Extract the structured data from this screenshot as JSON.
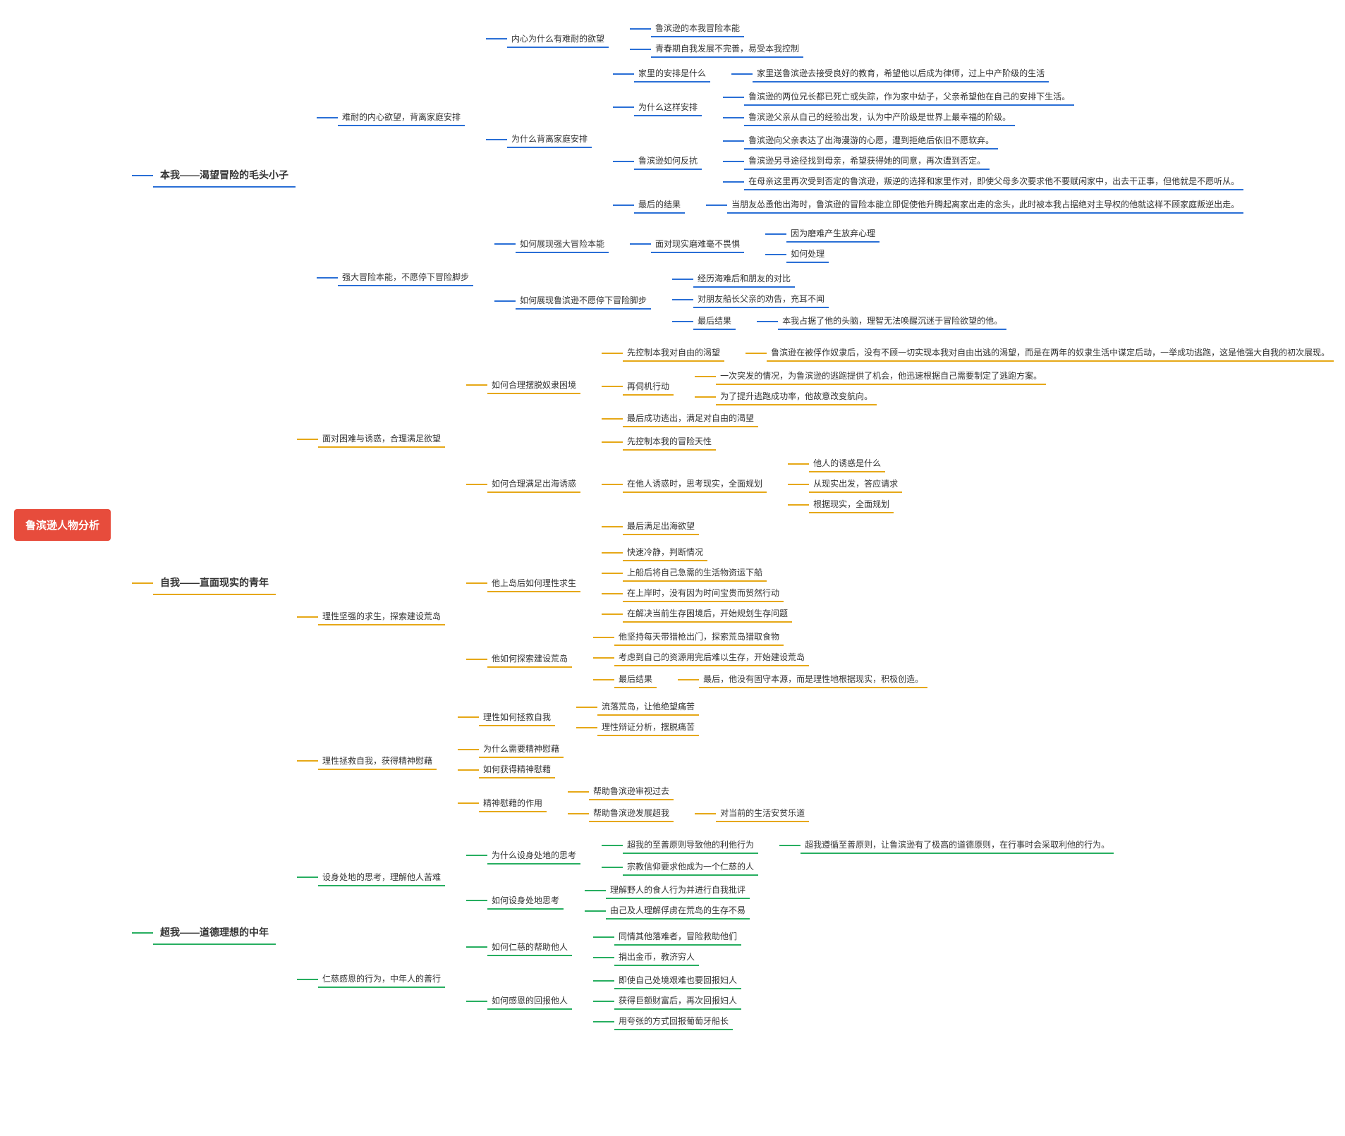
{
  "root": "鲁滨逊人物分析",
  "colors": {
    "root_bg": "#e74c3c",
    "root_fg": "#ffffff",
    "blue": "#2a6fd6",
    "orange": "#e6a817",
    "green": "#27ae60",
    "background": "#ffffff"
  },
  "font": {
    "family": "Microsoft YaHei",
    "root_size": 15,
    "l1_size": 14,
    "leaf_size": 12
  },
  "branches": [
    {
      "color": "blue",
      "title": "本我——渴望冒险的毛头小子",
      "children": [
        {
          "title": "难耐的内心欲望，背离家庭安排",
          "children": [
            {
              "title": "内心为什么有难耐的欲望",
              "children": [
                {
                  "title": "鲁滨逊的本我冒险本能"
                },
                {
                  "title": "青春期自我发展不完善，易受本我控制"
                }
              ]
            },
            {
              "title": "为什么背离家庭安排",
              "children": [
                {
                  "title": "家里的安排是什么",
                  "children": [
                    {
                      "title": "家里送鲁滨逊去接受良好的教育，希望他以后成为律师，过上中产阶级的生活"
                    }
                  ]
                },
                {
                  "title": "为什么这样安排",
                  "children": [
                    {
                      "title": "鲁滨逊的两位兄长都已死亡或失踪，作为家中幼子，父亲希望他在自己的安排下生活。"
                    },
                    {
                      "title": "鲁滨逊父亲从自己的经验出发，认为中产阶级是世界上最幸福的阶级。"
                    }
                  ]
                },
                {
                  "title": "鲁滨逊如何反抗",
                  "children": [
                    {
                      "title": "鲁滨逊向父亲表达了出海漫游的心愿，遭到拒绝后依旧不愿软弃。"
                    },
                    {
                      "title": "鲁滨逊另寻途径找到母亲，希望获得她的同意，再次遭到否定。"
                    },
                    {
                      "title": "在母亲这里再次受到否定的鲁滨逊，叛逆的选择和家里作对，即使父母多次要求他不要赋闲家中，出去干正事，但他就是不愿听从。"
                    }
                  ]
                },
                {
                  "title": "最后的结果",
                  "children": [
                    {
                      "title": "当朋友怂恿他出海时，鲁滨逊的冒险本能立即促使他升腾起离家出走的念头，此时被本我占据绝对主导权的他就这样不顾家庭叛逆出走。"
                    }
                  ]
                }
              ]
            }
          ]
        },
        {
          "title": "强大冒险本能，不愿停下冒险脚步",
          "children": [
            {
              "title": "如何展现强大冒险本能",
              "children": [
                {
                  "title": "面对现实磨难毫不畏惧",
                  "children": [
                    {
                      "title": "因为磨难产生放弃心理"
                    },
                    {
                      "title": "如何处理"
                    }
                  ]
                }
              ]
            },
            {
              "title": "如何展现鲁滨逊不愿停下冒险脚步",
              "children": [
                {
                  "title": "经历海难后和朋友的对比"
                },
                {
                  "title": "对朋友船长父亲的劝告，充耳不闻"
                },
                {
                  "title": "最后结果",
                  "children": [
                    {
                      "title": "本我占据了他的头脑，理智无法唤醒沉迷于冒险欲望的他。"
                    }
                  ]
                }
              ]
            }
          ]
        }
      ]
    },
    {
      "color": "orange",
      "title": "自我——直面现实的青年",
      "children": [
        {
          "title": "面对困难与诱惑，合理满足欲望",
          "children": [
            {
              "title": "如何合理摆脱奴隶困境",
              "children": [
                {
                  "title": "先控制本我对自由的渴望",
                  "children": [
                    {
                      "title": "鲁滨逊在被俘作奴隶后，没有不顾一切实现本我对自由出逃的渴望，而是在两年的奴隶生活中谋定后动，一举成功逃跑，这是他强大自我的初次展现。"
                    }
                  ]
                },
                {
                  "title": "再伺机行动",
                  "children": [
                    {
                      "title": "一次突发的情况，为鲁滨逊的逃跑提供了机会，他迅速根据自己需要制定了逃跑方案。"
                    },
                    {
                      "title": "为了提升逃跑成功率，他故意改变航向。"
                    }
                  ]
                },
                {
                  "title": "最后成功逃出，满足对自由的渴望"
                }
              ]
            },
            {
              "title": "如何合理满足出海诱惑",
              "children": [
                {
                  "title": "先控制本我的冒险天性"
                },
                {
                  "title": "在他人诱惑时，思考现实，全面规划",
                  "children": [
                    {
                      "title": "他人的诱惑是什么"
                    },
                    {
                      "title": "从现实出发，答应请求"
                    },
                    {
                      "title": "根据现实，全面规划"
                    }
                  ]
                },
                {
                  "title": "最后满足出海欲望"
                }
              ]
            }
          ]
        },
        {
          "title": "理性坚强的求生，探索建设荒岛",
          "children": [
            {
              "title": "他上岛后如何理性求生",
              "children": [
                {
                  "title": "快速冷静，判断情况"
                },
                {
                  "title": "上船后将自己急需的生活物资运下船"
                },
                {
                  "title": "在上岸时，没有因为时间宝贵而贸然行动"
                },
                {
                  "title": "在解决当前生存困境后，开始规划生存问题"
                }
              ]
            },
            {
              "title": "他如何探索建设荒岛",
              "children": [
                {
                  "title": "他坚持每天带猎枪出门，探索荒岛猎取食物"
                },
                {
                  "title": "考虑到自己的资源用完后难以生存，开始建设荒岛"
                },
                {
                  "title": "最后结果",
                  "children": [
                    {
                      "title": "最后，他没有固守本源，而是理性地根据现实，积极创造。"
                    }
                  ]
                }
              ]
            }
          ]
        },
        {
          "title": "理性拯救自我，获得精神慰藉",
          "children": [
            {
              "title": "理性如何拯救自我",
              "children": [
                {
                  "title": "流落荒岛，让他绝望痛苦"
                },
                {
                  "title": "理性辩证分析，摆脱痛苦"
                }
              ]
            },
            {
              "title": "为什么需要精神慰藉"
            },
            {
              "title": "如何获得精神慰藉"
            },
            {
              "title": "精神慰藉的作用",
              "children": [
                {
                  "title": "帮助鲁滨逊审视过去"
                },
                {
                  "title": "帮助鲁滨逊发展超我",
                  "children": [
                    {
                      "title": "对当前的生活安贫乐道"
                    }
                  ]
                }
              ]
            }
          ]
        }
      ]
    },
    {
      "color": "green",
      "title": "超我——道德理想的中年",
      "children": [
        {
          "title": "设身处地的思考，理解他人苦难",
          "children": [
            {
              "title": "为什么设身处地的思考",
              "children": [
                {
                  "title": "超我的至善原则导致他的利他行为",
                  "children": [
                    {
                      "title": "超我遵循至善原则，让鲁滨逊有了极高的道德原则，在行事时会采取利他的行为。"
                    }
                  ]
                },
                {
                  "title": "宗教信仰要求他成为一个仁慈的人"
                }
              ]
            },
            {
              "title": "如何设身处地思考",
              "children": [
                {
                  "title": "理解野人的食人行为并进行自我批评"
                },
                {
                  "title": "由己及人理解俘虏在荒岛的生存不易"
                }
              ]
            }
          ]
        },
        {
          "title": "仁慈感恩的行为，中年人的善行",
          "children": [
            {
              "title": "如何仁慈的帮助他人",
              "children": [
                {
                  "title": "同情其他落难者，冒险救助他们"
                },
                {
                  "title": "捐出金币，教济穷人"
                }
              ]
            },
            {
              "title": "如何感恩的回报他人",
              "children": [
                {
                  "title": "即使自己处境艰难也要回报妇人"
                },
                {
                  "title": "获得巨额财富后，再次回报妇人"
                },
                {
                  "title": "用夸张的方式回报葡萄牙船长"
                }
              ]
            }
          ]
        }
      ]
    }
  ]
}
